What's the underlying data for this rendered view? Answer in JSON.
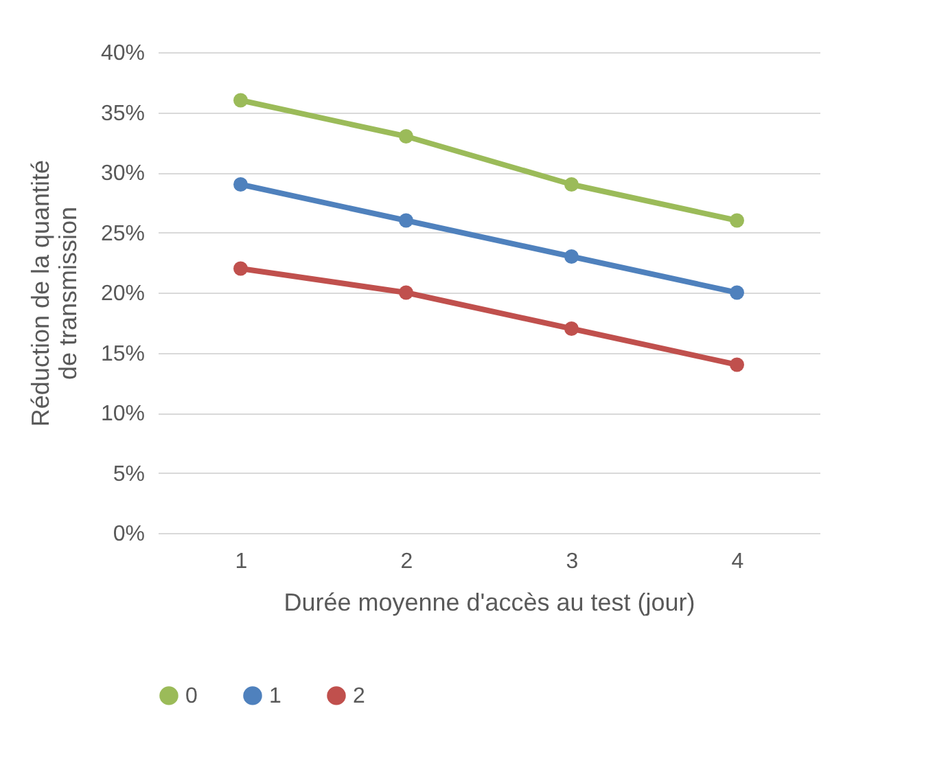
{
  "chart_data": {
    "type": "line",
    "xlabel": "Durée moyenne d'accès au test (jour)",
    "ylabel": "Réduction de la quantité de transmission",
    "categories": [
      "1",
      "2",
      "3",
      "4"
    ],
    "series": [
      {
        "name": "0",
        "color": "#9bbb59",
        "values": [
          36,
          33,
          29,
          26
        ]
      },
      {
        "name": "1",
        "color": "#4f81bd",
        "values": [
          29,
          26,
          23,
          20
        ]
      },
      {
        "name": "2",
        "color": "#c0504d",
        "values": [
          22,
          20,
          17,
          14
        ]
      }
    ],
    "ylim": [
      0,
      40
    ],
    "yticks": [
      {
        "value": 0,
        "label": "0%"
      },
      {
        "value": 5,
        "label": "5%"
      },
      {
        "value": 10,
        "label": "10%"
      },
      {
        "value": 15,
        "label": "15%"
      },
      {
        "value": 20,
        "label": "20%"
      },
      {
        "value": 25,
        "label": "25%"
      },
      {
        "value": 30,
        "label": "30%"
      },
      {
        "value": 35,
        "label": "35%"
      },
      {
        "value": 40,
        "label": "40%"
      }
    ],
    "grid": "y",
    "legend": "bottom",
    "marker": "circle",
    "line_style": "solid"
  }
}
